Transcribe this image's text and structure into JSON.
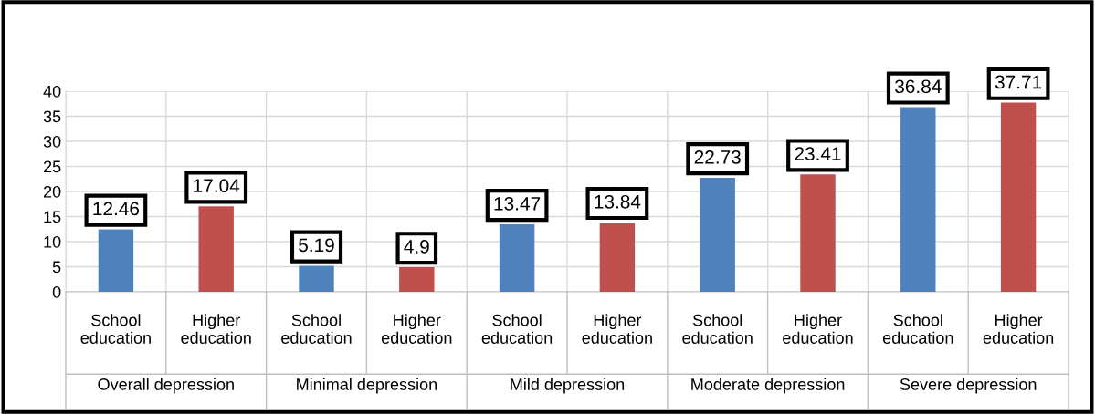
{
  "chart_data": {
    "type": "bar",
    "categories": [
      "School education",
      "Higher education",
      "School education",
      "Higher education",
      "School education",
      "Higher education",
      "School education",
      "Higher education",
      "School education",
      "Higher education"
    ],
    "values": [
      12.46,
      17.04,
      5.19,
      4.9,
      13.47,
      13.84,
      22.73,
      23.41,
      36.84,
      37.71
    ],
    "colors": [
      "#4f81bd",
      "#c0504d",
      "#4f81bd",
      "#c0504d",
      "#4f81bd",
      "#c0504d",
      "#4f81bd",
      "#c0504d",
      "#4f81bd",
      "#c0504d"
    ],
    "annotations": [
      "Overall depression",
      "Minimal depression",
      "Mild depression",
      "Moderate depression",
      "Severe depression"
    ],
    "ylim": [
      0,
      40
    ],
    "yticks": [
      0,
      5,
      10,
      15,
      20,
      25,
      30,
      35,
      40
    ],
    "grid": "y",
    "data_labels": true
  }
}
